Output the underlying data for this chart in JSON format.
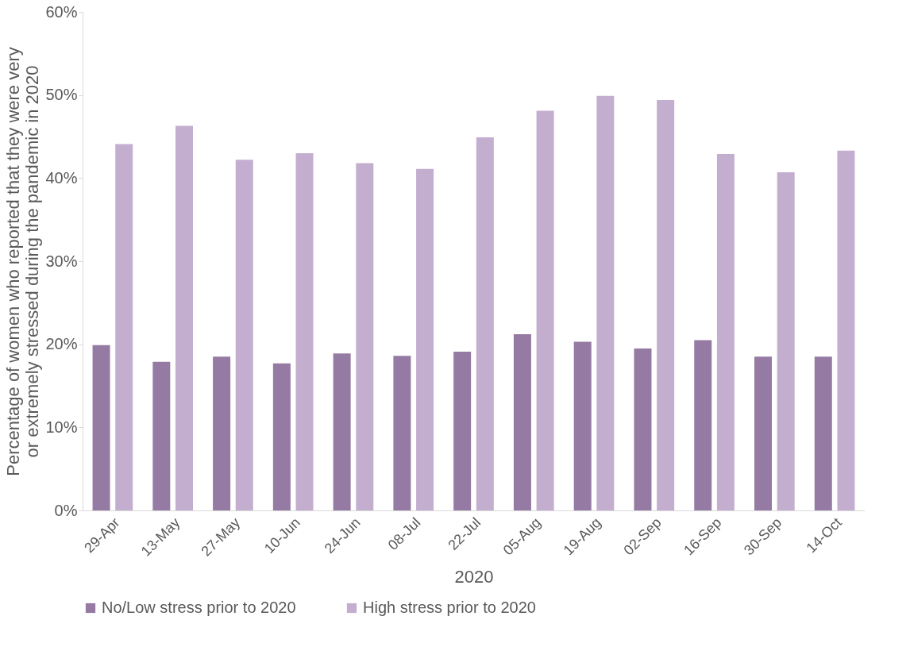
{
  "chart_data": {
    "type": "bar",
    "xlabel": "2020",
    "ylabel": "Percentage of women who reported that they were very or extremely stressed during the pandemic in 2020",
    "categories": [
      "29-Apr",
      "13-May",
      "27-May",
      "10-Jun",
      "24-Jun",
      "08-Jul",
      "22-Jul",
      "05-Aug",
      "19-Aug",
      "02-Sep",
      "16-Sep",
      "30-Sep",
      "14-Oct"
    ],
    "series": [
      {
        "name": "No/Low stress prior to 2020",
        "color": "#957ba3",
        "values": [
          19.9,
          17.9,
          18.5,
          17.7,
          18.9,
          18.6,
          19.1,
          21.2,
          20.3,
          19.5,
          20.5,
          18.5,
          18.5
        ]
      },
      {
        "name": "High stress prior to 2020",
        "color": "#c4aecf",
        "values": [
          44.1,
          46.3,
          42.2,
          43.0,
          41.8,
          41.1,
          44.9,
          48.1,
          49.9,
          49.4,
          42.9,
          40.7,
          43.3
        ]
      }
    ],
    "ylim": [
      0,
      60
    ],
    "yticks": [
      {
        "value": 0,
        "label": "0%"
      },
      {
        "value": 10,
        "label": "10%"
      },
      {
        "value": 20,
        "label": "20%"
      },
      {
        "value": 30,
        "label": "30%"
      },
      {
        "value": 40,
        "label": "40%"
      },
      {
        "value": 50,
        "label": "50%"
      },
      {
        "value": 60,
        "label": "60%"
      }
    ],
    "grid": false,
    "legend": "bottom"
  }
}
